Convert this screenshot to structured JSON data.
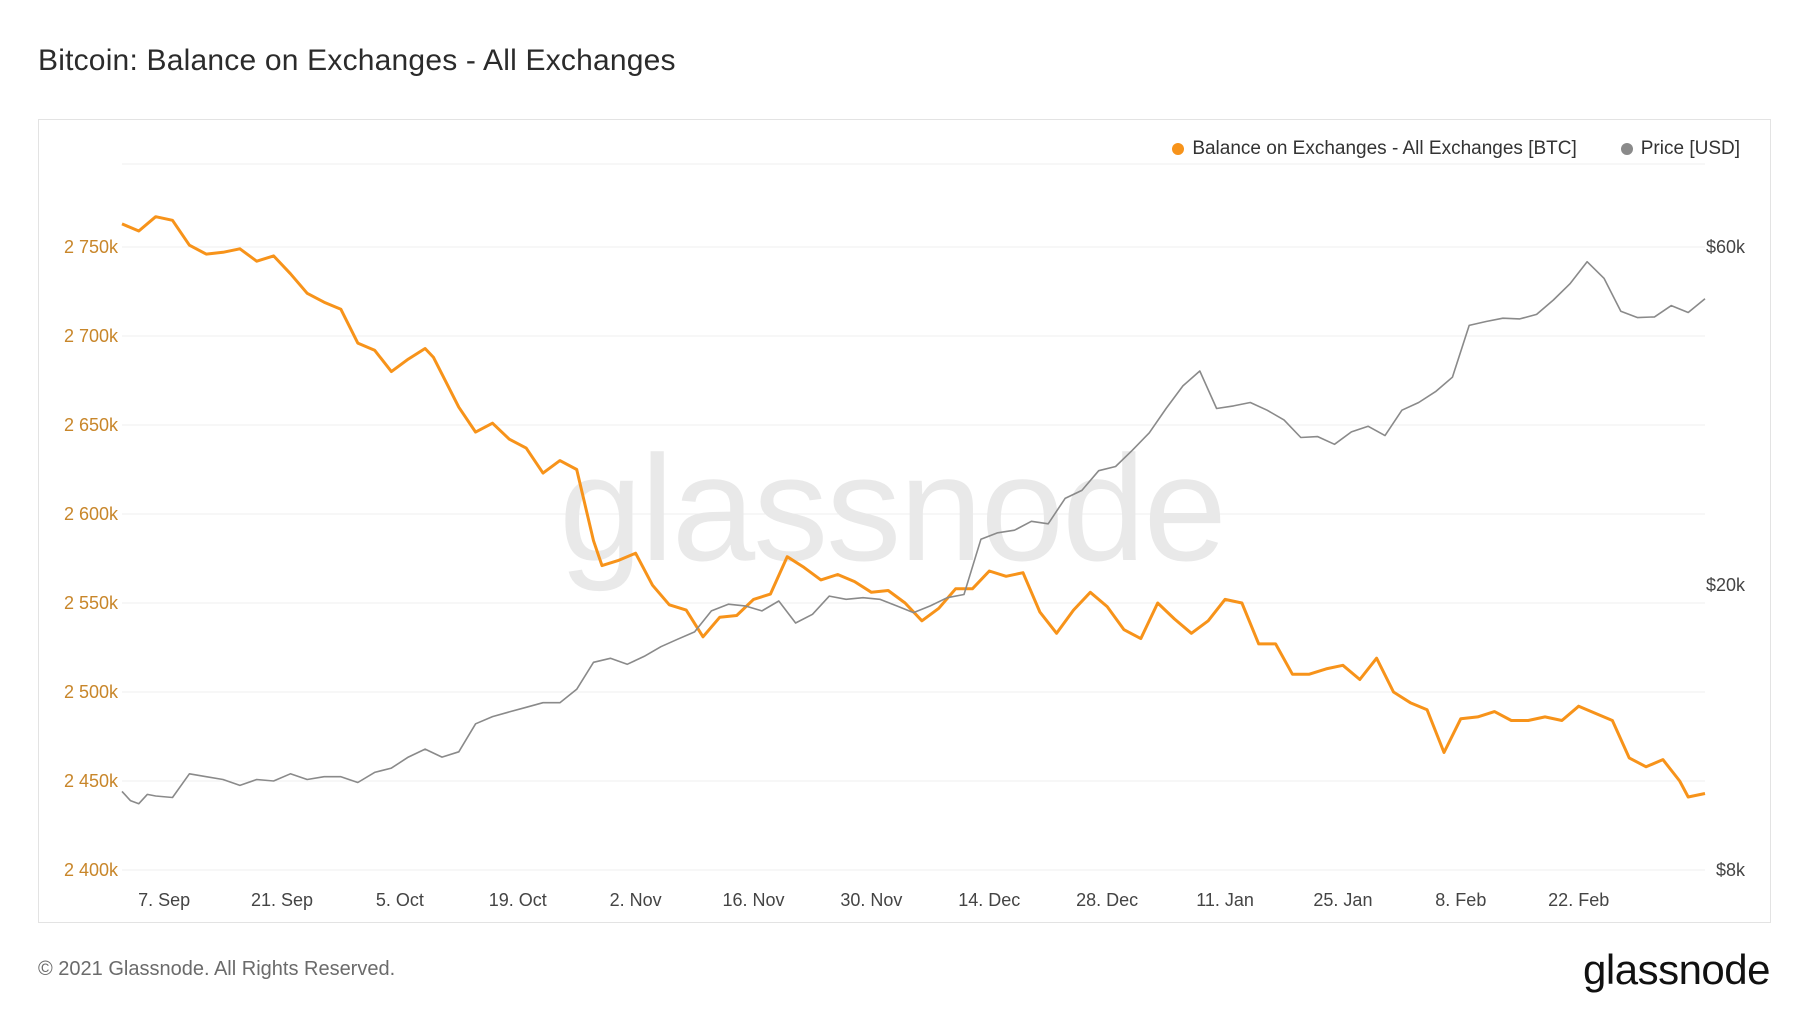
{
  "title": "Bitcoin: Balance on Exchanges - All Exchanges",
  "footer": {
    "copyright": "© 2021 Glassnode. All Rights Reserved.",
    "logo": "glassnode"
  },
  "watermark": "glassnode",
  "colors": {
    "balance": "#f7931a",
    "price": "#8a8a8a",
    "left_axis": "#c8862a"
  },
  "chart_data": {
    "type": "line",
    "x_ticks": [
      "7. Sep",
      "21. Sep",
      "5. Oct",
      "19. Oct",
      "2. Nov",
      "16. Nov",
      "30. Nov",
      "14. Dec",
      "28. Dec",
      "11. Jan",
      "25. Jan",
      "8. Feb",
      "22. Feb"
    ],
    "y_left": {
      "ticks": [
        "2 400k",
        "2 450k",
        "2 500k",
        "2 550k",
        "2 600k",
        "2 650k",
        "2 700k",
        "2 750k"
      ],
      "ylim": [
        2400,
        2750
      ]
    },
    "y_right": {
      "scale": "log",
      "ticks": [
        "$8k",
        "$20k",
        "$60k"
      ]
    },
    "legend": [
      {
        "label": "Balance on Exchanges - All Exchanges [BTC]",
        "color": "#f7931a"
      },
      {
        "label": "Price [USD]",
        "color": "#8a8a8a"
      }
    ],
    "grid": true,
    "legend_position": "top-right",
    "series": [
      {
        "name": "Balance on Exchanges - All Exchanges [BTC]",
        "axis": "left",
        "values": [
          [
            0,
            2763
          ],
          [
            2,
            2759
          ],
          [
            4,
            2767
          ],
          [
            6,
            2765
          ],
          [
            8,
            2751
          ],
          [
            10,
            2746
          ],
          [
            12,
            2747
          ],
          [
            14,
            2749
          ],
          [
            16,
            2742
          ],
          [
            18,
            2745
          ],
          [
            20,
            2735
          ],
          [
            22,
            2724
          ],
          [
            24,
            2719
          ],
          [
            26,
            2715
          ],
          [
            28,
            2696
          ],
          [
            30,
            2692
          ],
          [
            32,
            2680
          ],
          [
            34,
            2687
          ],
          [
            36,
            2693
          ],
          [
            37,
            2688
          ],
          [
            40,
            2660
          ],
          [
            42,
            2646
          ],
          [
            44,
            2651
          ],
          [
            46,
            2642
          ],
          [
            48,
            2637
          ],
          [
            50,
            2623
          ],
          [
            52,
            2630
          ],
          [
            54,
            2625
          ],
          [
            56,
            2585
          ],
          [
            57,
            2571
          ],
          [
            59,
            2574
          ],
          [
            61,
            2578
          ],
          [
            63,
            2560
          ],
          [
            65,
            2549
          ],
          [
            67,
            2546
          ],
          [
            69,
            2531
          ],
          [
            71,
            2542
          ],
          [
            73,
            2543
          ],
          [
            75,
            2552
          ],
          [
            77,
            2555
          ],
          [
            79,
            2576
          ],
          [
            81,
            2570
          ],
          [
            83,
            2563
          ],
          [
            85,
            2566
          ],
          [
            87,
            2562
          ],
          [
            89,
            2556
          ],
          [
            91,
            2557
          ],
          [
            93,
            2550
          ],
          [
            95,
            2540
          ],
          [
            97,
            2547
          ],
          [
            99,
            2558
          ],
          [
            101,
            2558
          ],
          [
            103,
            2568
          ],
          [
            105,
            2565
          ],
          [
            107,
            2567
          ],
          [
            109,
            2545
          ],
          [
            111,
            2533
          ],
          [
            113,
            2546
          ],
          [
            115,
            2556
          ],
          [
            117,
            2548
          ],
          [
            119,
            2535
          ],
          [
            121,
            2530
          ],
          [
            123,
            2550
          ],
          [
            125,
            2541
          ],
          [
            127,
            2533
          ],
          [
            129,
            2540
          ],
          [
            131,
            2552
          ],
          [
            133,
            2550
          ],
          [
            135,
            2527
          ],
          [
            137,
            2527
          ],
          [
            139,
            2510
          ],
          [
            141,
            2510
          ],
          [
            143,
            2513
          ],
          [
            145,
            2515
          ],
          [
            147,
            2507
          ],
          [
            149,
            2519
          ],
          [
            151,
            2500
          ],
          [
            153,
            2494
          ],
          [
            155,
            2490
          ],
          [
            157,
            2466
          ],
          [
            159,
            2485
          ],
          [
            161,
            2486
          ],
          [
            163,
            2489
          ],
          [
            165,
            2484
          ],
          [
            167,
            2484
          ],
          [
            169,
            2486
          ],
          [
            171,
            2484
          ],
          [
            173,
            2492
          ],
          [
            175,
            2488
          ],
          [
            177,
            2484
          ],
          [
            179,
            2463
          ],
          [
            181,
            2458
          ],
          [
            183,
            2462
          ],
          [
            185,
            2450
          ],
          [
            186,
            2441
          ],
          [
            188,
            2443
          ]
        ]
      },
      {
        "name": "Price [USD]",
        "axis": "right",
        "values": [
          [
            0,
            10300
          ],
          [
            1,
            10000
          ],
          [
            2,
            9900
          ],
          [
            3,
            10200
          ],
          [
            4,
            10150
          ],
          [
            6,
            10100
          ],
          [
            8,
            10900
          ],
          [
            10,
            10800
          ],
          [
            12,
            10700
          ],
          [
            14,
            10500
          ],
          [
            16,
            10700
          ],
          [
            18,
            10650
          ],
          [
            20,
            10900
          ],
          [
            22,
            10700
          ],
          [
            24,
            10800
          ],
          [
            26,
            10800
          ],
          [
            28,
            10600
          ],
          [
            30,
            10950
          ],
          [
            32,
            11100
          ],
          [
            34,
            11500
          ],
          [
            36,
            11800
          ],
          [
            38,
            11500
          ],
          [
            40,
            11700
          ],
          [
            42,
            12800
          ],
          [
            44,
            13100
          ],
          [
            46,
            13300
          ],
          [
            48,
            13500
          ],
          [
            50,
            13700
          ],
          [
            52,
            13700
          ],
          [
            54,
            14300
          ],
          [
            56,
            15600
          ],
          [
            58,
            15800
          ],
          [
            60,
            15500
          ],
          [
            62,
            15900
          ],
          [
            64,
            16400
          ],
          [
            66,
            16800
          ],
          [
            68,
            17200
          ],
          [
            70,
            18400
          ],
          [
            72,
            18800
          ],
          [
            74,
            18700
          ],
          [
            76,
            18400
          ],
          [
            78,
            19000
          ],
          [
            80,
            17700
          ],
          [
            82,
            18200
          ],
          [
            84,
            19300
          ],
          [
            86,
            19100
          ],
          [
            88,
            19200
          ],
          [
            90,
            19100
          ],
          [
            92,
            18700
          ],
          [
            94,
            18300
          ],
          [
            96,
            18700
          ],
          [
            98,
            19200
          ],
          [
            100,
            19400
          ],
          [
            102,
            23200
          ],
          [
            104,
            23700
          ],
          [
            106,
            23900
          ],
          [
            108,
            24600
          ],
          [
            110,
            24400
          ],
          [
            112,
            26500
          ],
          [
            114,
            27200
          ],
          [
            116,
            29000
          ],
          [
            118,
            29400
          ],
          [
            120,
            31000
          ],
          [
            122,
            32800
          ],
          [
            124,
            35500
          ],
          [
            126,
            38200
          ],
          [
            128,
            40100
          ],
          [
            130,
            35500
          ],
          [
            132,
            35800
          ],
          [
            134,
            36200
          ],
          [
            136,
            35300
          ],
          [
            138,
            34200
          ],
          [
            140,
            32300
          ],
          [
            142,
            32400
          ],
          [
            144,
            31600
          ],
          [
            146,
            32900
          ],
          [
            148,
            33500
          ],
          [
            150,
            32500
          ],
          [
            152,
            35300
          ],
          [
            154,
            36200
          ],
          [
            156,
            37500
          ],
          [
            158,
            39300
          ],
          [
            160,
            46500
          ],
          [
            162,
            47100
          ],
          [
            164,
            47600
          ],
          [
            166,
            47500
          ],
          [
            168,
            48200
          ],
          [
            170,
            50500
          ],
          [
            172,
            53300
          ],
          [
            174,
            57200
          ],
          [
            176,
            54200
          ],
          [
            178,
            48700
          ],
          [
            180,
            47700
          ],
          [
            182,
            47800
          ],
          [
            184,
            49600
          ],
          [
            186,
            48500
          ],
          [
            188,
            50700
          ]
        ]
      }
    ]
  }
}
